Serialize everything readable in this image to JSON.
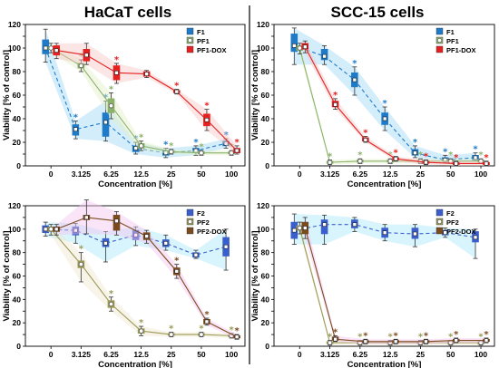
{
  "chart_data": [
    {
      "type": "line",
      "title": "HaCaT cells",
      "xlabel": "Concentration [%]",
      "ylabel": "Viability [% of control]",
      "categories": [
        "0",
        "3.125",
        "6.25",
        "12.5",
        "25",
        "50",
        "100"
      ],
      "ylim": [
        0,
        120
      ],
      "yticks": [
        0,
        10,
        20,
        30,
        40,
        50,
        60,
        70,
        80,
        90,
        100,
        110,
        120
      ],
      "legend_position": "top-right",
      "series": [
        {
          "name": "F1",
          "color": "#1f7bc8",
          "shade": "#9dd6f5",
          "dash": true,
          "values": [
            100,
            31,
            37,
            15,
            11,
            13,
            19
          ],
          "box": [
            [
              95,
              107
            ],
            [
              26,
              35
            ],
            [
              25,
              45
            ],
            [
              12,
              17
            ],
            [
              9,
              13
            ],
            [
              11,
              15
            ],
            [
              17,
              21
            ]
          ],
          "whisker": [
            [
              88,
              116
            ],
            [
              23,
              38
            ],
            [
              21,
              55
            ],
            [
              10,
              20
            ],
            [
              7,
              15
            ],
            [
              9,
              17
            ],
            [
              15,
              23
            ]
          ],
          "sig": [
            false,
            true,
            true,
            true,
            true,
            true,
            true
          ]
        },
        {
          "name": "PF1",
          "color": "#8ab26b",
          "shade": "#e3efc6",
          "dash": false,
          "values": [
            100,
            85,
            51,
            17,
            12,
            11,
            11
          ],
          "box": [
            [
              99,
              101
            ],
            [
              83,
              87
            ],
            [
              45,
              57
            ],
            [
              15,
              19
            ],
            [
              11,
              13
            ],
            [
              10,
              12
            ],
            [
              10,
              12
            ]
          ],
          "whisker": [
            [
              96,
              104
            ],
            [
              80,
              90
            ],
            [
              40,
              62
            ],
            [
              13,
              21
            ],
            [
              10,
              14
            ],
            [
              9,
              13
            ],
            [
              9,
              13
            ]
          ],
          "sig": [
            false,
            true,
            true,
            true,
            true,
            true,
            true
          ]
        },
        {
          "name": "PF1-DOX",
          "color": "#e52020",
          "shade": "#f7c6c6",
          "dash": false,
          "values": [
            98,
            94,
            79,
            78,
            63,
            39,
            13
          ],
          "box": [
            [
              94,
              102
            ],
            [
              89,
              99
            ],
            [
              73,
              85
            ],
            [
              76,
              80
            ],
            [
              62,
              64
            ],
            [
              34,
              44
            ],
            [
              11,
              15
            ]
          ],
          "whisker": [
            [
              91,
              104
            ],
            [
              86,
              104
            ],
            [
              70,
              87
            ],
            [
              75,
              81
            ],
            [
              61,
              65
            ],
            [
              30,
              48
            ],
            [
              10,
              17
            ]
          ],
          "sig": [
            false,
            false,
            true,
            false,
            true,
            true,
            true
          ]
        }
      ]
    },
    {
      "type": "line",
      "title": "SCC-15 cells",
      "xlabel": "Concentration [%]",
      "ylabel": "Viability [% of control]",
      "categories": [
        "0",
        "3.125",
        "6.25",
        "12.5",
        "25",
        "50",
        "100"
      ],
      "ylim": [
        0,
        120
      ],
      "yticks": [
        0,
        10,
        20,
        30,
        40,
        50,
        60,
        70,
        80,
        90,
        100,
        110,
        120
      ],
      "legend_position": "top-right",
      "series": [
        {
          "name": "F1",
          "color": "#1f7bc8",
          "shade": "#9dd6f5",
          "dash": true,
          "values": [
            102,
            93,
            73,
            40,
            11,
            5,
            7
          ],
          "box": [
            [
              97,
              112
            ],
            [
              90,
              99
            ],
            [
              67,
              79
            ],
            [
              35,
              45
            ],
            [
              9,
              14
            ],
            [
              4,
              7
            ],
            [
              5,
              9
            ]
          ],
          "whisker": [
            [
              86,
              117
            ],
            [
              86,
              102
            ],
            [
              60,
              84
            ],
            [
              30,
              50
            ],
            [
              7,
              17
            ],
            [
              3,
              9
            ],
            [
              4,
              11
            ]
          ],
          "sig": [
            false,
            false,
            true,
            true,
            true,
            true,
            true
          ]
        },
        {
          "name": "PF1",
          "color": "#8ab26b",
          "shade": "#e3efc6",
          "dash": false,
          "values": [
            100,
            3,
            4,
            4,
            4,
            4,
            4
          ],
          "box": [
            [
              98,
              102
            ],
            [
              2,
              4
            ],
            [
              3,
              5
            ],
            [
              3,
              5
            ],
            [
              3,
              5
            ],
            [
              3,
              5
            ],
            [
              3,
              5
            ]
          ],
          "whisker": [
            [
              95,
              104
            ],
            [
              1,
              5
            ],
            [
              2,
              6
            ],
            [
              2,
              6
            ],
            [
              2,
              6
            ],
            [
              2,
              6
            ],
            [
              2,
              6
            ]
          ],
          "sig": [
            false,
            true,
            true,
            true,
            true,
            true,
            true
          ]
        },
        {
          "name": "PF1-DOX",
          "color": "#e52020",
          "shade": "#f7c6c6",
          "dash": false,
          "values": [
            101,
            52,
            22,
            6,
            3,
            2,
            2
          ],
          "box": [
            [
              99,
              104
            ],
            [
              50,
              55
            ],
            [
              21,
              24
            ],
            [
              5,
              7
            ],
            [
              2,
              4
            ],
            [
              1,
              3
            ],
            [
              1,
              3
            ]
          ],
          "whisker": [
            [
              96,
              106
            ],
            [
              48,
              57
            ],
            [
              20,
              25
            ],
            [
              4,
              8
            ],
            [
              1,
              5
            ],
            [
              0,
              4
            ],
            [
              0,
              4
            ]
          ],
          "sig": [
            false,
            true,
            true,
            true,
            true,
            true,
            true
          ]
        }
      ]
    },
    {
      "type": "line",
      "title": "",
      "xlabel": "Concentration [%]",
      "ylabel": "Viability [% of control]",
      "categories": [
        "0",
        "3.125",
        "6.25",
        "12.5",
        "25",
        "50",
        "100"
      ],
      "ylim": [
        0,
        120
      ],
      "yticks": [
        0,
        10,
        20,
        30,
        40,
        50,
        60,
        70,
        80,
        90,
        100,
        110,
        120
      ],
      "legend_position": "top-right",
      "series": [
        {
          "name": "F2",
          "color": "#3a5fcd",
          "shade": "#a8e6f8",
          "dash": true,
          "values": [
            100,
            99,
            88,
            95,
            88,
            78,
            85
          ],
          "box": [
            [
              97,
              103
            ],
            [
              95,
              102
            ],
            [
              85,
              92
            ],
            [
              91,
              99
            ],
            [
              85,
              91
            ],
            [
              76,
              80
            ],
            [
              77,
              93
            ]
          ],
          "whisker": [
            [
              94,
              106
            ],
            [
              88,
              105
            ],
            [
              72,
              98
            ],
            [
              86,
              102
            ],
            [
              82,
              95
            ],
            [
              75,
              82
            ],
            [
              65,
              100
            ]
          ],
          "sig": [
            false,
            false,
            false,
            false,
            false,
            false,
            false
          ]
        },
        {
          "name": "PF2",
          "color": "#9a9a56",
          "shade": "#f0e6d0",
          "dash": false,
          "values": [
            100,
            70,
            36,
            13,
            10,
            10,
            9
          ],
          "box": [
            [
              98,
              102
            ],
            [
              67,
              73
            ],
            [
              33,
              39
            ],
            [
              11,
              15
            ],
            [
              9,
              11
            ],
            [
              9,
              11
            ],
            [
              8,
              10
            ]
          ],
          "whisker": [
            [
              95,
              104
            ],
            [
              55,
              80
            ],
            [
              30,
              42
            ],
            [
              9,
              17
            ],
            [
              8,
              12
            ],
            [
              8,
              12
            ],
            [
              7,
              11
            ]
          ],
          "sig": [
            false,
            true,
            true,
            true,
            true,
            true,
            true
          ]
        },
        {
          "name": "PF2-DOX",
          "color": "#7b4a1e",
          "shade": "#f3c6ef",
          "dash": false,
          "values": [
            100,
            110,
            107,
            94,
            64,
            21,
            8
          ],
          "box": [
            [
              98,
              102
            ],
            [
              108,
              112
            ],
            [
              99,
              112
            ],
            [
              91,
              97
            ],
            [
              61,
              67
            ],
            [
              19,
              23
            ],
            [
              7,
              9
            ]
          ],
          "whisker": [
            [
              95,
              104
            ],
            [
              96,
              125
            ],
            [
              95,
              115
            ],
            [
              88,
              99
            ],
            [
              58,
              70
            ],
            [
              18,
              24
            ],
            [
              6,
              10
            ]
          ],
          "sig": [
            false,
            false,
            false,
            false,
            true,
            true,
            true
          ]
        }
      ]
    },
    {
      "type": "line",
      "title": "",
      "xlabel": "Concentration [%]",
      "ylabel": "Viability [% of control]",
      "categories": [
        "0",
        "3.125",
        "6.25",
        "12.5",
        "25",
        "50",
        "100"
      ],
      "ylim": [
        0,
        120
      ],
      "yticks": [
        0,
        10,
        20,
        30,
        40,
        50,
        60,
        70,
        80,
        90,
        100,
        110,
        120
      ],
      "legend_position": "top-right",
      "series": [
        {
          "name": "F2",
          "color": "#3a5fcd",
          "shade": "#a8e6f8",
          "dash": true,
          "values": [
            99,
            104,
            104,
            97,
            96,
            97,
            93
          ],
          "box": [
            [
              92,
              106
            ],
            [
              96,
              108
            ],
            [
              101,
              108
            ],
            [
              93,
              101
            ],
            [
              92,
              101
            ],
            [
              95,
              99
            ],
            [
              89,
              98
            ]
          ],
          "whisker": [
            [
              87,
              113
            ],
            [
              87,
              112
            ],
            [
              98,
              110
            ],
            [
              90,
              104
            ],
            [
              85,
              104
            ],
            [
              93,
              101
            ],
            [
              75,
              100
            ]
          ],
          "sig": [
            false,
            false,
            false,
            false,
            false,
            false,
            false
          ]
        },
        {
          "name": "PF2",
          "color": "#9a9a56",
          "shade": "#f0e6d0",
          "dash": false,
          "values": [
            101,
            3,
            3,
            3,
            3,
            3,
            3
          ],
          "box": [
            [
              99,
              103
            ],
            [
              2,
              4
            ],
            [
              2,
              4
            ],
            [
              2,
              4
            ],
            [
              2,
              4
            ],
            [
              2,
              4
            ],
            [
              2,
              4
            ]
          ],
          "whisker": [
            [
              96,
              106
            ],
            [
              1,
              5
            ],
            [
              1,
              5
            ],
            [
              1,
              5
            ],
            [
              1,
              5
            ],
            [
              1,
              5
            ],
            [
              1,
              5
            ]
          ],
          "sig": [
            false,
            true,
            true,
            true,
            true,
            true,
            true
          ]
        },
        {
          "name": "PF2-DOX",
          "color": "#7b4a1e",
          "shade": "#f3c6ef",
          "dash": false,
          "values": [
            101,
            6,
            4,
            4,
            4,
            5,
            5
          ],
          "box": [
            [
              96,
              106
            ],
            [
              5,
              8
            ],
            [
              3,
              5
            ],
            [
              3,
              5
            ],
            [
              3,
              5
            ],
            [
              4,
              6
            ],
            [
              4,
              6
            ]
          ],
          "whisker": [
            [
              92,
              110
            ],
            [
              4,
              9
            ],
            [
              2,
              6
            ],
            [
              2,
              6
            ],
            [
              2,
              6
            ],
            [
              3,
              7
            ],
            [
              3,
              7
            ]
          ],
          "sig": [
            false,
            true,
            true,
            true,
            true,
            true,
            true
          ]
        }
      ]
    }
  ]
}
